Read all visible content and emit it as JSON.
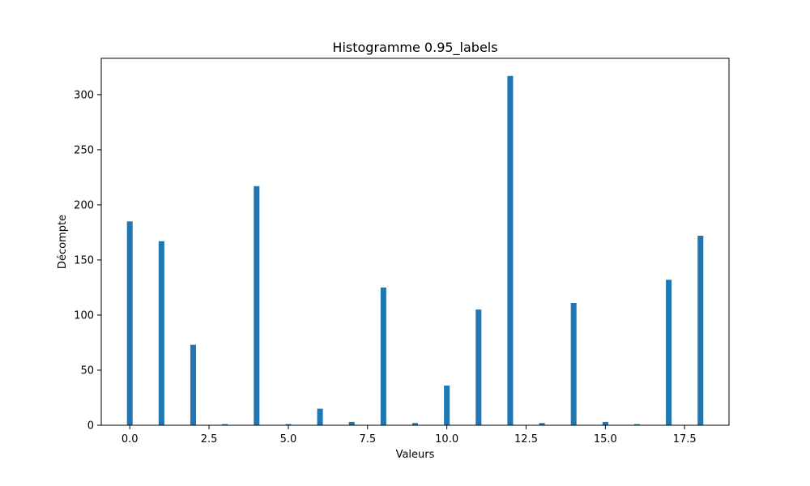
{
  "chart_data": {
    "type": "bar",
    "title": "Histogramme 0.95_labels",
    "xlabel": "Valeurs",
    "ylabel": "Décompte",
    "xlim": [
      -0.9,
      18.9
    ],
    "ylim": [
      0,
      333
    ],
    "bar_color": "#1f77b4",
    "bin_width": 0.18,
    "bins": [
      {
        "x": 0,
        "count": 185
      },
      {
        "x": 1,
        "count": 167
      },
      {
        "x": 2,
        "count": 73
      },
      {
        "x": 3,
        "count": 1
      },
      {
        "x": 4,
        "count": 217
      },
      {
        "x": 5,
        "count": 1
      },
      {
        "x": 6,
        "count": 15
      },
      {
        "x": 7,
        "count": 3
      },
      {
        "x": 8,
        "count": 125
      },
      {
        "x": 9,
        "count": 2
      },
      {
        "x": 10,
        "count": 36
      },
      {
        "x": 11,
        "count": 105
      },
      {
        "x": 12,
        "count": 317
      },
      {
        "x": 13,
        "count": 2
      },
      {
        "x": 14,
        "count": 111
      },
      {
        "x": 15,
        "count": 3
      },
      {
        "x": 16,
        "count": 1
      },
      {
        "x": 17,
        "count": 132
      },
      {
        "x": 18,
        "count": 172
      }
    ],
    "x_ticks": [
      "0.0",
      "2.5",
      "5.0",
      "7.5",
      "10.0",
      "12.5",
      "15.0",
      "17.5"
    ],
    "x_tick_values": [
      0,
      2.5,
      5,
      7.5,
      10,
      12.5,
      15,
      17.5
    ],
    "y_ticks": [
      "0",
      "50",
      "100",
      "150",
      "200",
      "250",
      "300"
    ],
    "y_tick_values": [
      0,
      50,
      100,
      150,
      200,
      250,
      300
    ],
    "grid": false,
    "legend": "none"
  }
}
